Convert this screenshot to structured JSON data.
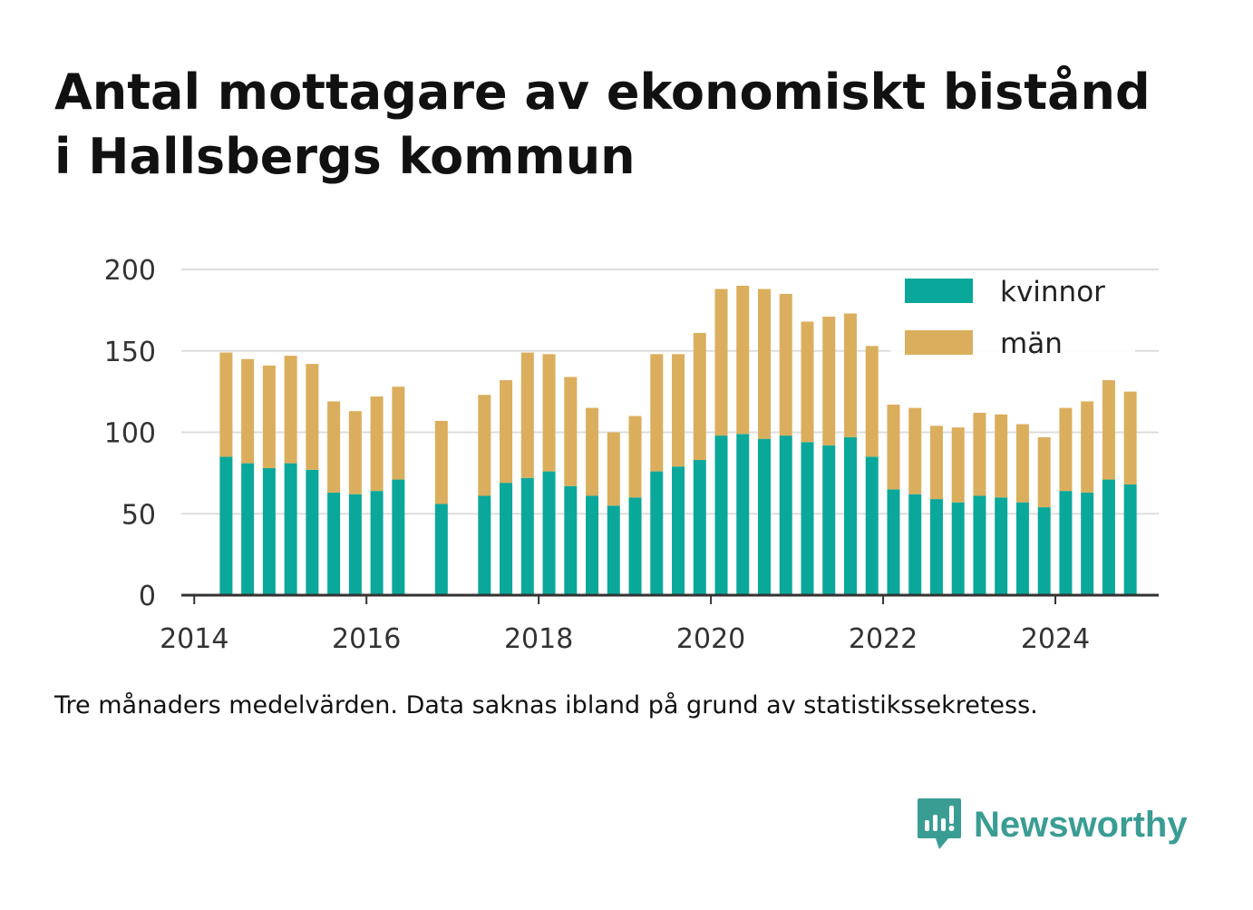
{
  "title_line1": "Antal mottagare av ekonomiskt bistånd",
  "title_line2": "i Hallsbergs kommun",
  "note": "Tre månaders medelvärden. Data saknas ibland på grund av statistikssekretess.",
  "brand": {
    "name": "Newsworthy",
    "icon": "newsworthy-logo-icon",
    "color": "#3a9d94"
  },
  "colors": {
    "kvinnor": "#0aa89a",
    "man": "#dbae5d",
    "grid": "#dddddd",
    "axis": "#333333"
  },
  "chart_data": {
    "type": "bar",
    "stacked": true,
    "x_axis": {
      "min": 2013.85,
      "max": 2025.2,
      "ticks": [
        2014,
        2016,
        2018,
        2020,
        2022,
        2024
      ]
    },
    "y_axis": {
      "min": 0,
      "max": 200,
      "ticks": [
        0,
        50,
        100,
        150,
        200
      ]
    },
    "grid": true,
    "legend_position": "top-right",
    "legend": [
      "kvinnor",
      "män"
    ],
    "x": [
      2014.37,
      2014.62,
      2014.87,
      2015.12,
      2015.37,
      2015.62,
      2015.87,
      2016.12,
      2016.37,
      2016.87,
      2017.37,
      2017.62,
      2017.87,
      2018.12,
      2018.37,
      2018.62,
      2018.87,
      2019.12,
      2019.37,
      2019.62,
      2019.87,
      2020.12,
      2020.37,
      2020.62,
      2020.87,
      2021.12,
      2021.37,
      2021.62,
      2021.87,
      2022.12,
      2022.37,
      2022.62,
      2022.87,
      2023.12,
      2023.37,
      2023.62,
      2023.87,
      2024.12,
      2024.37,
      2024.62,
      2024.87
    ],
    "series": [
      {
        "name": "kvinnor",
        "values": [
          85,
          81,
          78,
          81,
          77,
          63,
          62,
          64,
          71,
          56,
          61,
          69,
          72,
          76,
          67,
          61,
          55,
          60,
          76,
          79,
          83,
          98,
          99,
          96,
          98,
          94,
          92,
          97,
          85,
          65,
          62,
          59,
          57,
          61,
          60,
          57,
          54,
          64,
          63,
          71,
          68
        ]
      },
      {
        "name": "män",
        "values": [
          64,
          64,
          63,
          66,
          65,
          56,
          51,
          58,
          57,
          51,
          62,
          63,
          77,
          72,
          67,
          54,
          45,
          50,
          72,
          69,
          78,
          90,
          91,
          92,
          87,
          74,
          79,
          76,
          68,
          52,
          53,
          45,
          46,
          51,
          51,
          48,
          43,
          51,
          56,
          61,
          57
        ]
      }
    ]
  }
}
